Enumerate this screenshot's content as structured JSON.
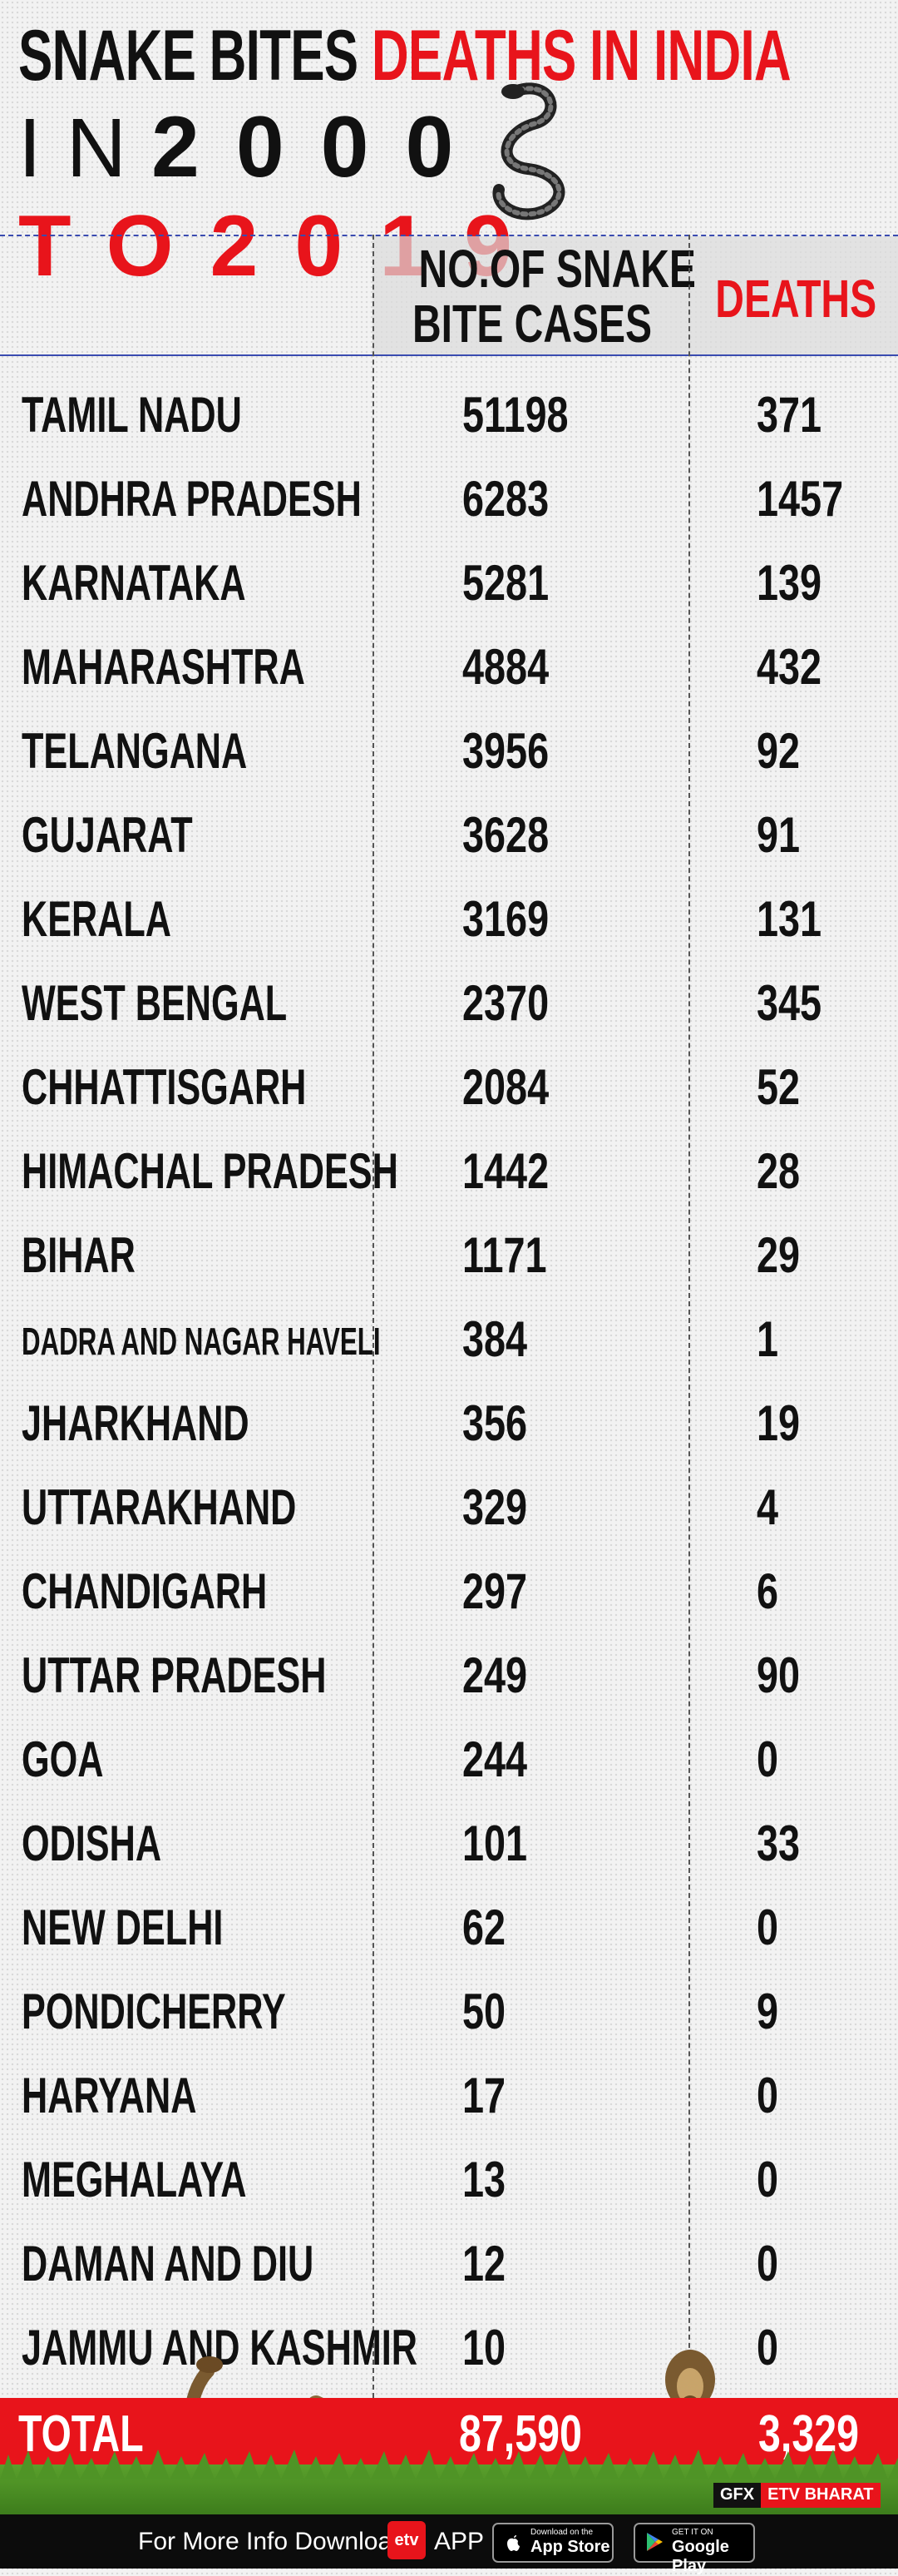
{
  "header": {
    "title_black": "SNAKE BITES ",
    "title_red": "DEATHS IN INDIA",
    "sub_in": "IN",
    "sub_year1": "2000",
    "sub_to": "TO",
    "sub_year2": "2019"
  },
  "table": {
    "col_cases_line1": "NO.OF SNAKE",
    "col_cases_line2": "BITE CASES",
    "col_deaths": "DEATHS",
    "rows": [
      {
        "state": "TAMIL NADU",
        "cases": "51198",
        "deaths": "371"
      },
      {
        "state": "ANDHRA PRADESH",
        "cases": "6283",
        "deaths": "1457"
      },
      {
        "state": "KARNATAKA",
        "cases": "5281",
        "deaths": "139"
      },
      {
        "state": "MAHARASHTRA",
        "cases": "4884",
        "deaths": "432"
      },
      {
        "state": "TELANGANA",
        "cases": "3956",
        "deaths": "92"
      },
      {
        "state": "GUJARAT",
        "cases": "3628",
        "deaths": "91"
      },
      {
        "state": "KERALA",
        "cases": "3169",
        "deaths": "131"
      },
      {
        "state": "WEST BENGAL",
        "cases": "2370",
        "deaths": "345"
      },
      {
        "state": "CHHATTISGARH",
        "cases": "2084",
        "deaths": "52"
      },
      {
        "state": "HIMACHAL PRADESH",
        "cases": "1442",
        "deaths": "28"
      },
      {
        "state": "BIHAR",
        "cases": "1171",
        "deaths": "29"
      },
      {
        "state": "DADRA AND NAGAR HAVELI",
        "cases": "384",
        "deaths": "1"
      },
      {
        "state": "JHARKHAND",
        "cases": "356",
        "deaths": "19"
      },
      {
        "state": "UTTARAKHAND",
        "cases": "329",
        "deaths": "4"
      },
      {
        "state": "CHANDIGARH",
        "cases": "297",
        "deaths": "6"
      },
      {
        "state": "UTTAR PRADESH",
        "cases": "249",
        "deaths": "90"
      },
      {
        "state": "GOA",
        "cases": "244",
        "deaths": "0"
      },
      {
        "state": "ODISHA",
        "cases": "101",
        "deaths": "33"
      },
      {
        "state": "NEW DELHI",
        "cases": "62",
        "deaths": "0"
      },
      {
        "state": "PONDICHERRY",
        "cases": "50",
        "deaths": "9"
      },
      {
        "state": "HARYANA",
        "cases": "17",
        "deaths": "0"
      },
      {
        "state": "MEGHALAYA",
        "cases": "13",
        "deaths": "0"
      },
      {
        "state": "DAMAN AND DIU",
        "cases": "12",
        "deaths": "0"
      },
      {
        "state": "JAMMU AND KASHMIR",
        "cases": "10",
        "deaths": "0"
      }
    ],
    "total_label": "TOTAL",
    "total_cases": "87,590",
    "total_deaths": "3,329"
  },
  "badge": {
    "gfx": "GFX",
    "brand": "ETV BHARAT"
  },
  "footer": {
    "text": "For More Info Download",
    "logo": "etv",
    "app": "APP",
    "appstore_small": "Download on the",
    "appstore_big": "App Store",
    "googleplay_small": "GET IT ON",
    "googleplay_big": "Google Play"
  },
  "colors": {
    "accent": "#e8141b",
    "text": "#111111",
    "divider": "#3a4bb0"
  }
}
